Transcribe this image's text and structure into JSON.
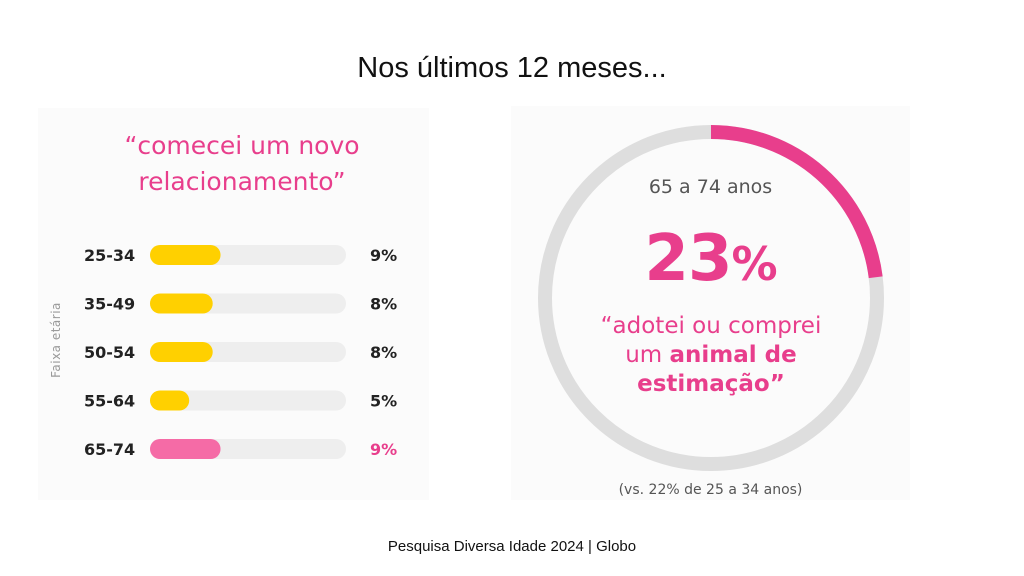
{
  "title": "Nos últimos 12 meses...",
  "footer": "Pesquisa Diversa Idade 2024 | Globo",
  "left_panel": {
    "quote_line1": "“comecei um novo",
    "quote_line2": "relacionamento”",
    "axis_label": "Faixa etária"
  },
  "right_panel": {
    "subtitle": "65 a 74 anos",
    "value_number": "23",
    "value_pct": "%",
    "quote_line1": "“adotei ou comprei",
    "quote_line2_plain": "um ",
    "quote_line2_bold": "animal de",
    "quote_line3_bold": "estimação”",
    "note": "(vs. 22% de 25 a 34 anos)"
  },
  "colors": {
    "pink": "#e83e8c",
    "yellow": "#ffd000",
    "bar_pink": "#f56ba6",
    "track": "#eeeeee",
    "ring_track": "#dedede"
  },
  "chart_data": [
    {
      "type": "bar",
      "orientation": "horizontal",
      "title": "“comecei um novo relacionamento”",
      "ylabel": "Faixa etária",
      "categories": [
        "25-34",
        "35-49",
        "50-54",
        "55-64",
        "65-74"
      ],
      "values": [
        9,
        8,
        8,
        5,
        9
      ],
      "value_labels": [
        "9%",
        "8%",
        "8%",
        "5%",
        "9%"
      ],
      "highlight": "65-74",
      "xlim": [
        0,
        25
      ]
    },
    {
      "type": "pie",
      "style": "donut",
      "title": "65 a 74 anos",
      "values": [
        23,
        77
      ],
      "value_label": "23%",
      "caption": "“adotei ou comprei um animal de estimação”"
    }
  ]
}
